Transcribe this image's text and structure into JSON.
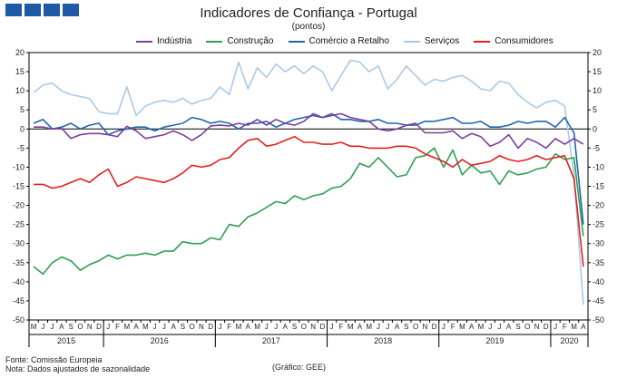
{
  "chart_data": {
    "type": "line",
    "title": "Indicadores de Confiança - Portugal",
    "subtitle": "(pontos)",
    "ylim": [
      -50,
      20
    ],
    "yticks": [
      20,
      15,
      10,
      5,
      0,
      -5,
      -10,
      -15,
      -20,
      -25,
      -30,
      -35,
      -40,
      -45,
      -50
    ],
    "months": [
      "M",
      "J",
      "J",
      "A",
      "S",
      "O",
      "N",
      "D",
      "J",
      "F",
      "M",
      "A",
      "M",
      "J",
      "J",
      "A",
      "S",
      "O",
      "N",
      "D",
      "J",
      "F",
      "M",
      "A",
      "M",
      "J",
      "J",
      "A",
      "S",
      "O",
      "N",
      "D",
      "J",
      "F",
      "M",
      "A",
      "M",
      "J",
      "J",
      "A",
      "S",
      "O",
      "N",
      "D",
      "J",
      "F",
      "M",
      "A",
      "M",
      "J",
      "J",
      "A",
      "S",
      "O",
      "N",
      "D",
      "J",
      "F",
      "M",
      "A"
    ],
    "years": [
      {
        "label": "2015",
        "start": 0,
        "end": 7
      },
      {
        "label": "2016",
        "start": 8,
        "end": 19
      },
      {
        "label": "2017",
        "start": 20,
        "end": 31
      },
      {
        "label": "2018",
        "start": 32,
        "end": 43
      },
      {
        "label": "2019",
        "start": 44,
        "end": 55
      },
      {
        "label": "2020",
        "start": 56,
        "end": 59
      }
    ],
    "grid": false,
    "legend_position": "top",
    "series": [
      {
        "name": "Indústria",
        "color": "#7b3f9e",
        "values": [
          0.5,
          0.5,
          0,
          0.2,
          -2.5,
          -1.5,
          -1.2,
          -1.2,
          -1.5,
          -2,
          0.7,
          -0.5,
          -2.5,
          -2,
          -1.5,
          -0.5,
          -1.5,
          -3,
          -1.5,
          0.8,
          1,
          0.8,
          1.5,
          1,
          2.5,
          1,
          2.5,
          1.5,
          1,
          2,
          4,
          3,
          3.5,
          4,
          3,
          2.5,
          2,
          0,
          -0.5,
          0,
          1,
          1.5,
          -1,
          -1,
          -1,
          -0.5,
          -2.5,
          -1.2,
          -2,
          -4.5,
          -3.5,
          -1.5,
          -5,
          -2.5,
          -3.5,
          -5,
          -2.5,
          -4,
          -2.5,
          -4
        ]
      },
      {
        "name": "Construção",
        "color": "#2e9e4f",
        "values": [
          -36,
          -38,
          -35,
          -33.5,
          -34.5,
          -37,
          -35.5,
          -34.5,
          -33,
          -34,
          -33,
          -33,
          -32.5,
          -33,
          -32,
          -32,
          -29.5,
          -30,
          -30,
          -28.5,
          -29,
          -25,
          -25.5,
          -23,
          -22,
          -20.5,
          -19,
          -19.5,
          -17.5,
          -18.5,
          -17.5,
          -17,
          -15.5,
          -15,
          -13,
          -9,
          -10,
          -7.5,
          -10,
          -12.5,
          -12,
          -7.5,
          -7,
          -5,
          -10,
          -5.5,
          -12,
          -9.5,
          -11.5,
          -11,
          -14.5,
          -11,
          -12,
          -11.5,
          -10.5,
          -10,
          -6.5,
          -8,
          -7.5,
          -28
        ]
      },
      {
        "name": "Comércio a Retalho",
        "color": "#1f66b0",
        "values": [
          1.5,
          2.5,
          0,
          0.5,
          1.5,
          0,
          1,
          1.5,
          -1.5,
          -0.5,
          0,
          0.5,
          0.5,
          -0.5,
          0.5,
          1,
          1.5,
          3,
          2.5,
          1.5,
          2,
          1.5,
          0,
          1.5,
          1.5,
          2,
          0.5,
          1.5,
          2.5,
          3,
          3.5,
          3,
          4,
          2.5,
          2.5,
          2,
          2,
          2.5,
          1.5,
          1.5,
          1,
          1,
          2,
          2,
          2.5,
          3,
          1.5,
          1.5,
          2,
          0.5,
          0.5,
          1,
          2,
          1.5,
          2,
          2,
          0.5,
          3,
          -1,
          -25
        ]
      },
      {
        "name": "Serviços",
        "color": "#a9c9ea",
        "values": [
          9.5,
          11.5,
          12,
          10,
          9,
          8.5,
          8,
          4.5,
          4,
          4,
          11,
          3.5,
          6,
          7,
          7.5,
          7,
          8,
          6.5,
          7.5,
          8,
          11,
          9,
          17.5,
          10.5,
          16,
          13.5,
          17,
          15,
          16.5,
          14.5,
          16.5,
          15,
          10,
          14,
          18,
          17.5,
          15,
          16.5,
          10.5,
          13,
          16.5,
          14,
          11.5,
          13,
          12.5,
          13.5,
          14,
          12.5,
          10.5,
          10,
          12.5,
          12,
          9,
          7,
          5.5,
          7,
          7.5,
          6,
          -12,
          -46
        ]
      },
      {
        "name": "Consumidores",
        "color": "#e02020",
        "values": [
          -14.5,
          -14.5,
          -15.5,
          -15,
          -14,
          -13,
          -14,
          -12,
          -10.5,
          -15,
          -14,
          -12.5,
          -13,
          -13.5,
          -14,
          -13,
          -11.5,
          -9.5,
          -10,
          -9.5,
          -8,
          -7.5,
          -5,
          -3,
          -2.5,
          -4.5,
          -4,
          -3,
          -2,
          -3.5,
          -3.5,
          -4,
          -4,
          -3.5,
          -4.5,
          -4.5,
          -5,
          -5,
          -5,
          -4.5,
          -4.5,
          -5,
          -6.5,
          -7.5,
          -8.5,
          -10,
          -8,
          -9.5,
          -9,
          -8.5,
          -7,
          -8,
          -8.5,
          -8,
          -7,
          -8,
          -7.5,
          -7,
          -13,
          -36
        ]
      }
    ]
  },
  "footer": {
    "fonte": "Fonte: Comissão Europeia",
    "nota": "Nota: Dados ajustados de sazonalidade",
    "credit": "(Gráfico: GEE)"
  }
}
